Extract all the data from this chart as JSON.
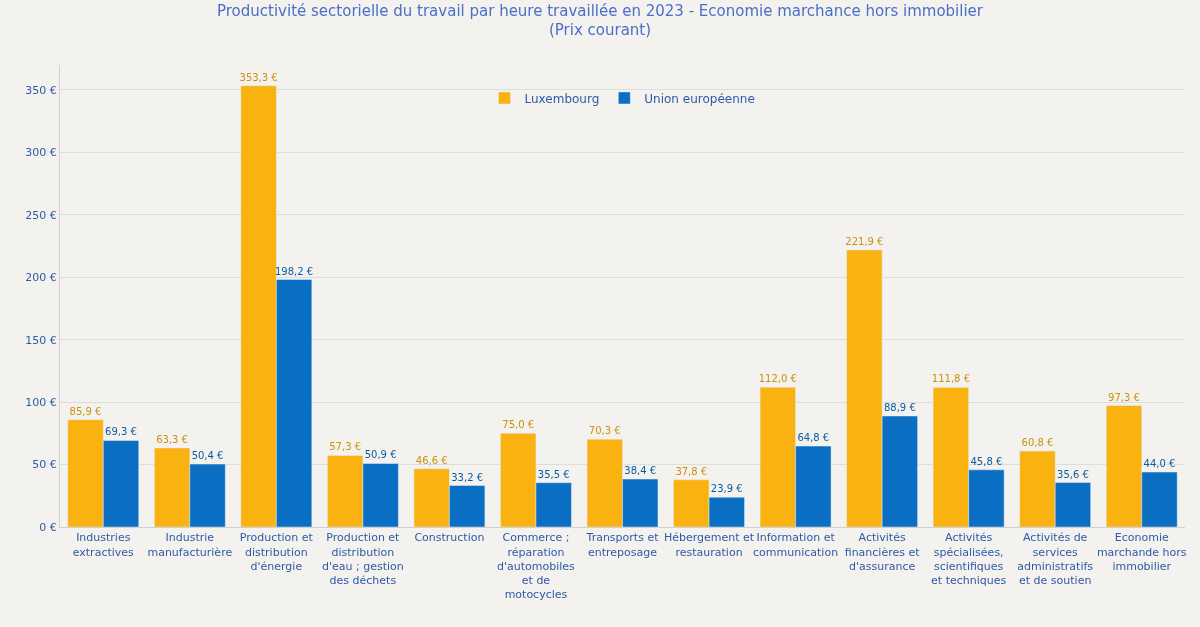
{
  "chart_data": {
    "type": "bar",
    "title": "Productivité sectorielle du travail par heure travaillée en 2023 - Economie marchance hors immobilier",
    "subtitle": "(Prix courant)",
    "categories": [
      "Industries extractives",
      "Industrie manufacturière",
      "Production et distribution d'énergie",
      "Production et distribution d'eau ; gestion des déchets",
      "Construction",
      "Commerce ; réparation d'automobiles et de motocycles",
      "Transports et entreposage",
      "Hébergement et restauration",
      "Information et communication",
      "Activités financières et d'assurance",
      "Activités spécialisées, scientifiques et techniques",
      "Activités de services administratifs et de soutien",
      "Economie marchande hors immobilier"
    ],
    "series": [
      {
        "name": "Luxembourg",
        "color": "#f9b20f",
        "values": [
          85.9,
          63.3,
          353.3,
          57.3,
          46.6,
          75.0,
          70.3,
          37.8,
          112.0,
          221.9,
          111.8,
          60.8,
          97.3
        ],
        "value_labels": [
          "85,9 €",
          "63,3 €",
          "353,3 €",
          "57,3 €",
          "46,6 €",
          "75,0 €",
          "70,3 €",
          "37,8 €",
          "112,0 €",
          "221,9 €",
          "111,8 €",
          "60,8 €",
          "97,3 €"
        ]
      },
      {
        "name": "Union européenne",
        "color": "#0a6fc2",
        "values": [
          69.3,
          50.4,
          198.2,
          50.9,
          33.2,
          35.5,
          38.4,
          23.9,
          64.8,
          88.9,
          45.8,
          35.6,
          44.0
        ],
        "value_labels": [
          "69,3 €",
          "50,4 €",
          "198,2 €",
          "50,9 €",
          "33,2 €",
          "35,5 €",
          "38,4 €",
          "23,9 €",
          "64,8 €",
          "88,9 €",
          "45,8 €",
          "35,6 €",
          "44,0 €"
        ]
      }
    ],
    "ylim": [
      0,
      370
    ],
    "yticks": [
      {
        "value": 0,
        "label": "0 €"
      },
      {
        "value": 50,
        "label": "50 €"
      },
      {
        "value": 100,
        "label": "100 €"
      },
      {
        "value": 150,
        "label": "150 €"
      },
      {
        "value": 200,
        "label": "200 €"
      },
      {
        "value": 250,
        "label": "250 €"
      },
      {
        "value": 300,
        "label": "300 €"
      },
      {
        "value": 350,
        "label": "350 €"
      }
    ],
    "grid": "y",
    "legend": "top"
  }
}
